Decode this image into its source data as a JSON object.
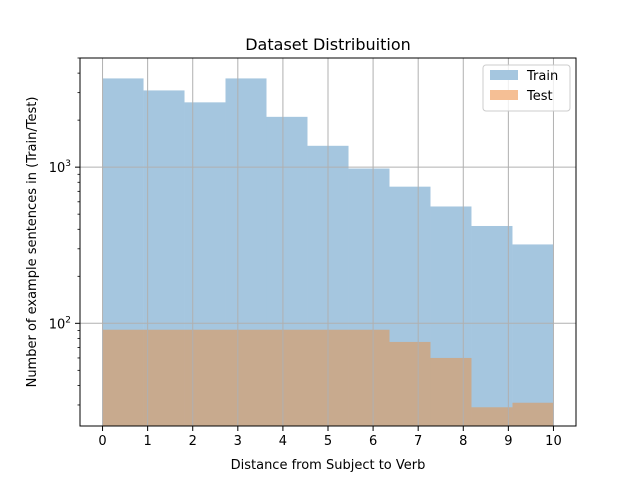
{
  "chart_data": {
    "type": "bar",
    "title": "Dataset Distribuition",
    "xlabel": "Distance from Subject to Verb",
    "ylabel": "Number of example sentences in (Train/Test)",
    "yscale": "log",
    "xlim": [
      -0.5,
      10.5
    ],
    "ylim": [
      22,
      5000
    ],
    "xticks": [
      "0",
      "1",
      "2",
      "3",
      "4",
      "5",
      "6",
      "7",
      "8",
      "9",
      "10"
    ],
    "xtick_values": [
      0,
      1,
      2,
      3,
      4,
      5,
      6,
      7,
      8,
      9,
      10
    ],
    "yticks": [
      {
        "value": 100,
        "base": "10",
        "exp": "2"
      },
      {
        "value": 1000,
        "base": "10",
        "exp": "3"
      }
    ],
    "grid": true,
    "legend_position": "top-right",
    "bin_edges": [
      0,
      0.909,
      1.818,
      2.727,
      3.636,
      4.545,
      5.455,
      6.364,
      7.273,
      8.182,
      9.091,
      10
    ],
    "series": [
      {
        "name": "Train",
        "color": "#a5c6df",
        "values": [
          3700,
          3100,
          2600,
          3700,
          2100,
          1370,
          980,
          750,
          560,
          420,
          320
        ]
      },
      {
        "name": "Test",
        "color": "#c8aa8e",
        "legend_color": "#f5bf95",
        "values": [
          91,
          91,
          91,
          91,
          91,
          91,
          91,
          76,
          60,
          29,
          31
        ]
      }
    ]
  }
}
